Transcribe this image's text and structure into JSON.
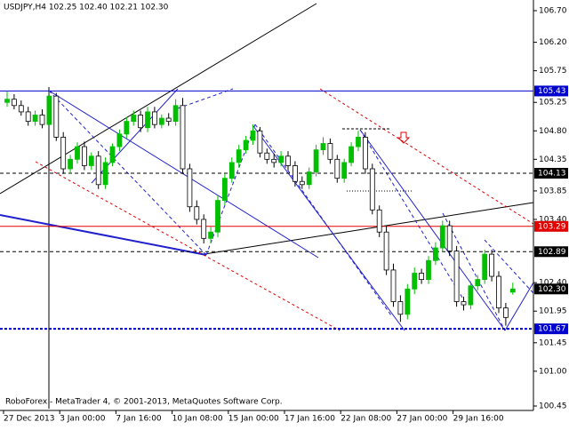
{
  "chart_data": {
    "type": "candlestick",
    "title": "USDJPY,H4  102.25 102.40 102.21 102.30",
    "watermark": "RoboForex - MetaTrader 4, © 2001-2013, MetaQuotes Software Corp.",
    "categories": [
      "27 Dec 2013",
      null,
      null,
      null,
      null,
      null,
      null,
      null,
      "3 Jan 00:00",
      null,
      null,
      null,
      null,
      null,
      null,
      null,
      "7 Jan 16:00",
      null,
      null,
      null,
      null,
      null,
      null,
      null,
      "10 Jan 08:00",
      null,
      null,
      null,
      null,
      null,
      null,
      null,
      "15 Jan 00:00",
      null,
      null,
      null,
      null,
      null,
      null,
      null,
      "17 Jan 16:00",
      null,
      null,
      null,
      null,
      null,
      null,
      null,
      "22 Jan 08:00",
      null,
      null,
      null,
      null,
      null,
      null,
      null,
      "27 Jan 00:00",
      null,
      null,
      null,
      null,
      null,
      null,
      null,
      "29 Jan 16:00",
      null,
      null,
      null,
      null,
      null,
      null,
      null,
      null
    ],
    "open": [
      105.25,
      105.3,
      105.2,
      105.1,
      104.95,
      105.05,
      104.9,
      105.35,
      104.7,
      104.2,
      104.35,
      104.55,
      104.25,
      104.4,
      103.95,
      104.3,
      104.55,
      104.75,
      104.95,
      105.05,
      104.85,
      105.1,
      104.9,
      105.0,
      104.95,
      105.2,
      104.2,
      103.6,
      103.4,
      103.1,
      103.2,
      103.7,
      104.05,
      104.3,
      104.5,
      104.65,
      104.8,
      104.45,
      104.35,
      104.3,
      104.4,
      104.25,
      104.0,
      103.95,
      104.15,
      104.5,
      104.6,
      104.35,
      104.05,
      104.3,
      104.55,
      104.7,
      104.2,
      103.55,
      103.2,
      102.6,
      102.1,
      101.9,
      102.3,
      102.55,
      102.45,
      102.75,
      102.95,
      103.3,
      102.9,
      102.1,
      102.05,
      102.35,
      102.45,
      102.85,
      102.5,
      102.0,
      102.25
    ],
    "high": [
      105.42,
      105.38,
      105.28,
      105.18,
      105.12,
      105.14,
      105.43,
      105.4,
      104.78,
      104.42,
      104.62,
      104.63,
      104.46,
      104.48,
      104.38,
      104.6,
      104.82,
      105.02,
      105.12,
      105.12,
      105.18,
      105.18,
      105.06,
      105.08,
      105.3,
      105.32,
      104.28,
      103.7,
      103.48,
      103.28,
      103.78,
      104.12,
      104.38,
      104.58,
      104.72,
      104.9,
      104.86,
      104.52,
      104.44,
      104.48,
      104.48,
      104.32,
      104.08,
      104.22,
      104.58,
      104.7,
      104.68,
      104.42,
      104.36,
      104.62,
      104.8,
      104.78,
      104.28,
      103.62,
      103.3,
      102.7,
      102.2,
      102.38,
      102.64,
      102.62,
      102.82,
      103.04,
      103.38,
      103.38,
      102.98,
      102.18,
      102.42,
      102.52,
      102.92,
      102.92,
      102.58,
      102.08,
      102.4
    ],
    "low": [
      105.18,
      105.14,
      105.04,
      104.88,
      104.88,
      104.84,
      104.84,
      104.64,
      104.12,
      104.12,
      104.28,
      104.18,
      104.18,
      103.88,
      103.88,
      104.24,
      104.48,
      104.68,
      104.88,
      104.78,
      104.78,
      104.84,
      104.84,
      104.88,
      104.88,
      104.12,
      103.52,
      103.32,
      103.02,
      103.02,
      103.12,
      103.62,
      103.98,
      104.22,
      104.44,
      104.58,
      104.38,
      104.28,
      104.22,
      104.24,
      104.18,
      103.92,
      103.88,
      103.88,
      104.08,
      104.42,
      104.28,
      103.98,
      103.98,
      104.24,
      104.48,
      104.12,
      103.48,
      103.12,
      102.52,
      102.02,
      101.78,
      101.82,
      102.22,
      102.38,
      102.38,
      102.68,
      102.88,
      102.82,
      102.02,
      101.96,
      101.98,
      102.28,
      102.38,
      102.42,
      101.92,
      101.72,
      102.21
    ],
    "close": [
      105.3,
      105.2,
      105.1,
      104.95,
      105.05,
      104.9,
      105.35,
      104.7,
      104.2,
      104.35,
      104.55,
      104.25,
      104.4,
      103.95,
      104.3,
      104.55,
      104.75,
      104.95,
      105.05,
      104.85,
      105.1,
      104.9,
      105.0,
      104.95,
      105.2,
      104.2,
      103.6,
      103.4,
      103.1,
      103.2,
      103.7,
      104.05,
      104.3,
      104.5,
      104.65,
      104.8,
      104.45,
      104.35,
      104.3,
      104.4,
      104.25,
      104.0,
      103.95,
      104.15,
      104.5,
      104.6,
      104.35,
      104.05,
      104.3,
      104.55,
      104.7,
      104.2,
      103.55,
      103.2,
      102.6,
      102.1,
      101.9,
      102.3,
      102.55,
      102.45,
      102.75,
      102.95,
      103.3,
      102.9,
      102.1,
      102.05,
      102.35,
      102.45,
      102.85,
      102.5,
      102.0,
      101.85,
      102.3
    ],
    "up_color": "#00c000",
    "down_color": "#000000",
    "ylim": [
      100.45,
      106.7
    ],
    "yticks": [
      {
        "value": 106.7,
        "label": "106.70"
      },
      {
        "value": 106.2,
        "label": "106.20"
      },
      105.75,
      105.25,
      {
        "value": 104.8,
        "label": "104.80"
      },
      104.35,
      103.85,
      {
        "value": 103.4,
        "label": "103.40"
      },
      {
        "value": 102.4,
        "label": "102.40"
      },
      101.95,
      101.45,
      {
        "value": 101.0,
        "label": "101.00"
      },
      100.45
    ],
    "levels": [
      {
        "value": 105.43,
        "color": "#0000cc",
        "style": "solid"
      },
      {
        "value": 104.13,
        "color": "#000000",
        "style": "dashed"
      },
      {
        "value": 103.29,
        "color": "#e00000",
        "style": "solid"
      },
      {
        "value": 102.89,
        "color": "#000000",
        "style": "dashed"
      },
      {
        "value": {
          "value": 102.3,
          "label": "102.30"
        },
        "color": "#000000",
        "style": "current"
      },
      {
        "value": 101.67,
        "color": "#0000cc",
        "style": "thick"
      }
    ]
  }
}
